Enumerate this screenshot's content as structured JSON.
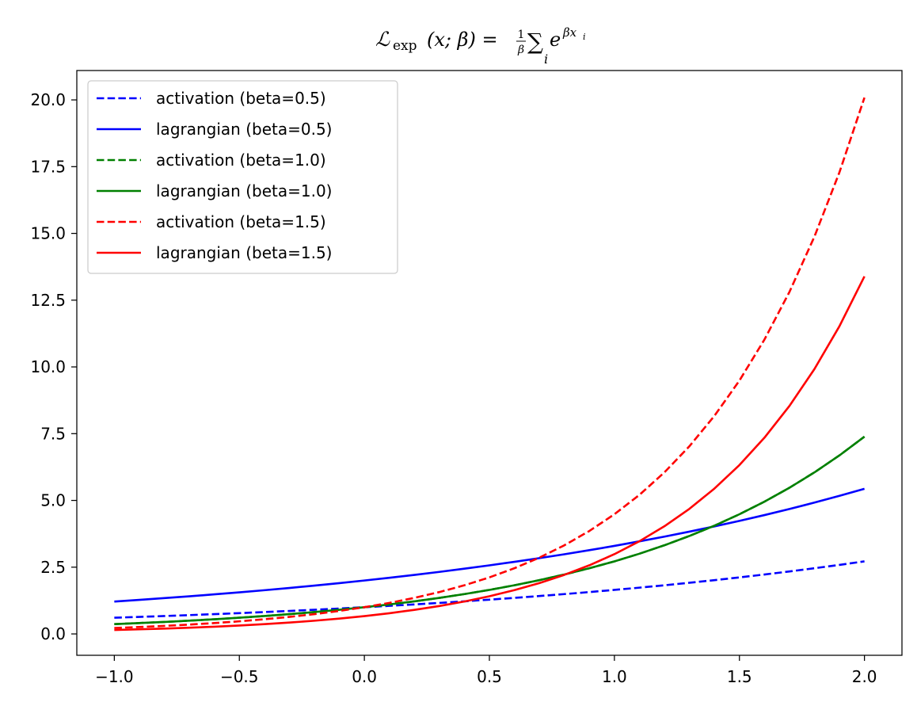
{
  "chart_data": {
    "type": "line",
    "title": {
      "script_l": "ℒ",
      "subscript": "exp",
      "args": "(x; β) =",
      "frac_num": "1",
      "frac_den": "β",
      "sum": "∑",
      "sum_index": "i",
      "base": "e",
      "exponent": "βx",
      "exponent_sub": "i"
    },
    "xlabel": "",
    "ylabel": "",
    "xlim": [
      -1.15,
      2.15
    ],
    "ylim": [
      -0.8,
      21.1
    ],
    "x_ticks": [
      -1.0,
      -0.5,
      0.0,
      0.5,
      1.0,
      1.5,
      2.0
    ],
    "x_tick_labels": [
      "−1.0",
      "−0.5",
      "0.0",
      "0.5",
      "1.0",
      "1.5",
      "2.0"
    ],
    "y_ticks": [
      0.0,
      2.5,
      5.0,
      7.5,
      10.0,
      12.5,
      15.0,
      17.5,
      20.0
    ],
    "y_tick_labels": [
      "0.0",
      "2.5",
      "5.0",
      "7.5",
      "10.0",
      "12.5",
      "15.0",
      "17.5",
      "20.0"
    ],
    "grid": false,
    "legend_position": "upper-left",
    "x": [
      -1.0,
      -0.9,
      -0.8,
      -0.7,
      -0.6,
      -0.5,
      -0.4,
      -0.3,
      -0.2,
      -0.1,
      0.0,
      0.1,
      0.2,
      0.3,
      0.4,
      0.5,
      0.6,
      0.7,
      0.8,
      0.9,
      1.0,
      1.1,
      1.2,
      1.3,
      1.4,
      1.5,
      1.6,
      1.7,
      1.8,
      1.9,
      2.0
    ],
    "series": [
      {
        "name": "activation (beta=0.5)",
        "color": "#0000ff",
        "style": "dashed",
        "values": [
          0.607,
          0.638,
          0.67,
          0.705,
          0.741,
          0.779,
          0.819,
          0.861,
          0.905,
          0.951,
          1.0,
          1.051,
          1.105,
          1.162,
          1.221,
          1.284,
          1.35,
          1.419,
          1.492,
          1.568,
          1.649,
          1.733,
          1.822,
          1.916,
          2.014,
          2.117,
          2.226,
          2.34,
          2.46,
          2.586,
          2.718
        ]
      },
      {
        "name": "lagrangian (beta=0.5)",
        "color": "#0000ff",
        "style": "solid",
        "values": [
          1.213,
          1.275,
          1.341,
          1.409,
          1.482,
          1.558,
          1.637,
          1.721,
          1.81,
          1.902,
          2.0,
          2.103,
          2.21,
          2.324,
          2.443,
          2.568,
          2.7,
          2.838,
          2.984,
          3.137,
          3.297,
          3.467,
          3.644,
          3.831,
          4.028,
          4.234,
          4.451,
          4.679,
          4.919,
          5.172,
          5.437
        ]
      },
      {
        "name": "activation (beta=1.0)",
        "color": "#008000",
        "style": "dashed",
        "values": [
          0.368,
          0.407,
          0.449,
          0.497,
          0.549,
          0.607,
          0.67,
          0.741,
          0.819,
          0.905,
          1.0,
          1.105,
          1.221,
          1.35,
          1.492,
          1.649,
          1.822,
          2.014,
          2.226,
          2.46,
          2.718,
          3.004,
          3.32,
          3.669,
          4.055,
          4.482,
          4.953,
          5.474,
          6.05,
          6.686,
          7.389
        ]
      },
      {
        "name": "lagrangian (beta=1.0)",
        "color": "#008000",
        "style": "solid",
        "values": [
          0.368,
          0.407,
          0.449,
          0.497,
          0.549,
          0.607,
          0.67,
          0.741,
          0.819,
          0.905,
          1.0,
          1.105,
          1.221,
          1.35,
          1.492,
          1.649,
          1.822,
          2.014,
          2.226,
          2.46,
          2.718,
          3.004,
          3.32,
          3.669,
          4.055,
          4.482,
          4.953,
          5.474,
          6.05,
          6.686,
          7.389
        ]
      },
      {
        "name": "activation (beta=1.5)",
        "color": "#ff0000",
        "style": "dashed",
        "values": [
          0.223,
          0.259,
          0.301,
          0.35,
          0.407,
          0.472,
          0.549,
          0.638,
          0.741,
          0.861,
          1.0,
          1.162,
          1.35,
          1.568,
          1.822,
          2.117,
          2.46,
          2.858,
          3.32,
          3.857,
          4.482,
          5.207,
          6.05,
          7.029,
          8.166,
          9.488,
          11.023,
          12.807,
          14.88,
          17.288,
          20.086
        ]
      },
      {
        "name": "lagrangian (beta=1.5)",
        "color": "#ff0000",
        "style": "solid",
        "values": [
          0.149,
          0.173,
          0.201,
          0.233,
          0.271,
          0.315,
          0.366,
          0.425,
          0.494,
          0.574,
          0.667,
          0.775,
          0.9,
          1.046,
          1.215,
          1.411,
          1.64,
          1.905,
          2.213,
          2.571,
          2.988,
          3.471,
          4.033,
          4.686,
          5.444,
          6.325,
          7.349,
          8.538,
          9.92,
          11.525,
          13.39
        ]
      }
    ]
  }
}
